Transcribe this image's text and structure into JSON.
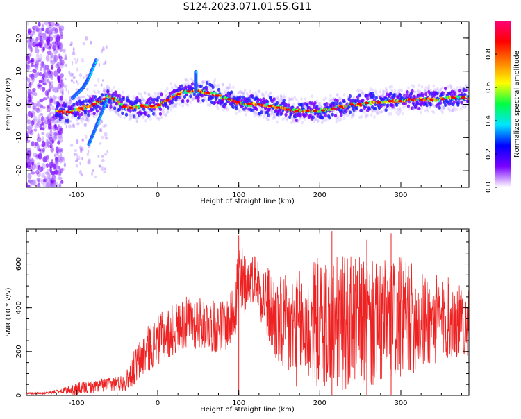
{
  "title": "S124.2023.071.01.55.G11",
  "chart_data": [
    {
      "type": "heatmap",
      "xlabel": "Height of straight line (km)",
      "ylabel": "Frequency (Hz)",
      "xlim": [
        -162,
        384
      ],
      "ylim": [
        -25,
        25
      ],
      "x_ticks": [
        -100,
        0,
        100,
        200,
        300
      ],
      "y_ticks": [
        -20,
        -10,
        0,
        10,
        20
      ],
      "colorbar": {
        "label": "Normalized spectral amplitude",
        "range": [
          0,
          1
        ],
        "ticks": [
          "0.0",
          "0.2",
          "0.4",
          "0.6",
          "0.8"
        ],
        "stops": [
          "#ffffff",
          "#7a00ff",
          "#0000ff",
          "#00e5ff",
          "#00ff44",
          "#ffff00",
          "#ff7f00",
          "#ff0000",
          "#ff0077"
        ]
      },
      "ridge": {
        "x": [
          -125,
          -110,
          -100,
          -90,
          -80,
          -70,
          -60,
          -50,
          -40,
          -30,
          -20,
          -10,
          0,
          10,
          20,
          30,
          40,
          50,
          60,
          70,
          80,
          90,
          100,
          110,
          120,
          130,
          140,
          150,
          160,
          170,
          180,
          190,
          200,
          210,
          220,
          230,
          240,
          250,
          260,
          270,
          280,
          290,
          300,
          310,
          320,
          330,
          340,
          350,
          360,
          370,
          384
        ],
        "y": [
          -2,
          -2.5,
          -1.5,
          -1,
          0,
          1,
          2.5,
          1,
          -1,
          -1,
          -0.5,
          -0.5,
          -0.5,
          1,
          2.5,
          3.5,
          4,
          4,
          3.5,
          3,
          2,
          1.5,
          0.5,
          0,
          0,
          0,
          -0.5,
          -1,
          -1.5,
          -2,
          -2,
          -2,
          -2,
          -1.5,
          -1,
          -0.5,
          0,
          0,
          0.5,
          0.5,
          1,
          1,
          1,
          1.5,
          1.5,
          1.5,
          1.5,
          1.5,
          2,
          2,
          2
        ]
      },
      "features": [
        {
          "name": "rising-track-left",
          "x": [
            -105,
            -92,
            -85,
            -75
          ],
          "y": [
            2,
            5,
            8,
            14
          ]
        },
        {
          "name": "descending-track",
          "x": [
            -85,
            -78,
            -70,
            -62
          ],
          "y": [
            -12,
            -8,
            -3,
            2
          ]
        },
        {
          "name": "spike",
          "x": [
            47,
            47
          ],
          "y": [
            4,
            10
          ]
        }
      ]
    },
    {
      "type": "line",
      "xlabel": "Height of straight line (km)",
      "ylabel": "SNR (10 * v/v)",
      "xlim": [
        -162,
        384
      ],
      "ylim": [
        0,
        760
      ],
      "x_ticks": [
        -100,
        0,
        100,
        200,
        300
      ],
      "y_ticks": [
        0,
        200,
        400,
        600
      ],
      "color": "#ee2222",
      "envelope": {
        "x": [
          -162,
          -140,
          -120,
          -100,
          -80,
          -60,
          -40,
          -30,
          -20,
          -10,
          0,
          10,
          20,
          30,
          40,
          50,
          60,
          70,
          80,
          90,
          95,
          100,
          105,
          110,
          120,
          130,
          140,
          150,
          160,
          170,
          180,
          190,
          200,
          210,
          220,
          230,
          240,
          250,
          260,
          270,
          280,
          290,
          300,
          310,
          320,
          330,
          340,
          350,
          360,
          370,
          384
        ],
        "mean": [
          10,
          10,
          20,
          30,
          40,
          50,
          60,
          120,
          170,
          220,
          250,
          280,
          300,
          320,
          330,
          340,
          330,
          310,
          320,
          340,
          420,
          500,
          480,
          520,
          540,
          460,
          380,
          330,
          300,
          300,
          310,
          320,
          340,
          330,
          320,
          330,
          340,
          330,
          320,
          320,
          330,
          340,
          350,
          360,
          340,
          340,
          340,
          350,
          350,
          340,
          330
        ],
        "amp": [
          5,
          5,
          10,
          30,
          30,
          30,
          40,
          80,
          100,
          110,
          110,
          120,
          120,
          120,
          130,
          130,
          120,
          120,
          120,
          130,
          150,
          250,
          200,
          100,
          120,
          150,
          200,
          220,
          250,
          260,
          280,
          300,
          300,
          320,
          320,
          310,
          300,
          300,
          300,
          290,
          290,
          290,
          280,
          260,
          240,
          220,
          210,
          200,
          190,
          170,
          150
        ]
      },
      "peaks": [
        {
          "x": 100,
          "y": 730
        },
        {
          "x": 215,
          "y": 750
        },
        {
          "x": 288,
          "y": 740
        },
        {
          "x": 258,
          "y": 710
        }
      ]
    }
  ]
}
